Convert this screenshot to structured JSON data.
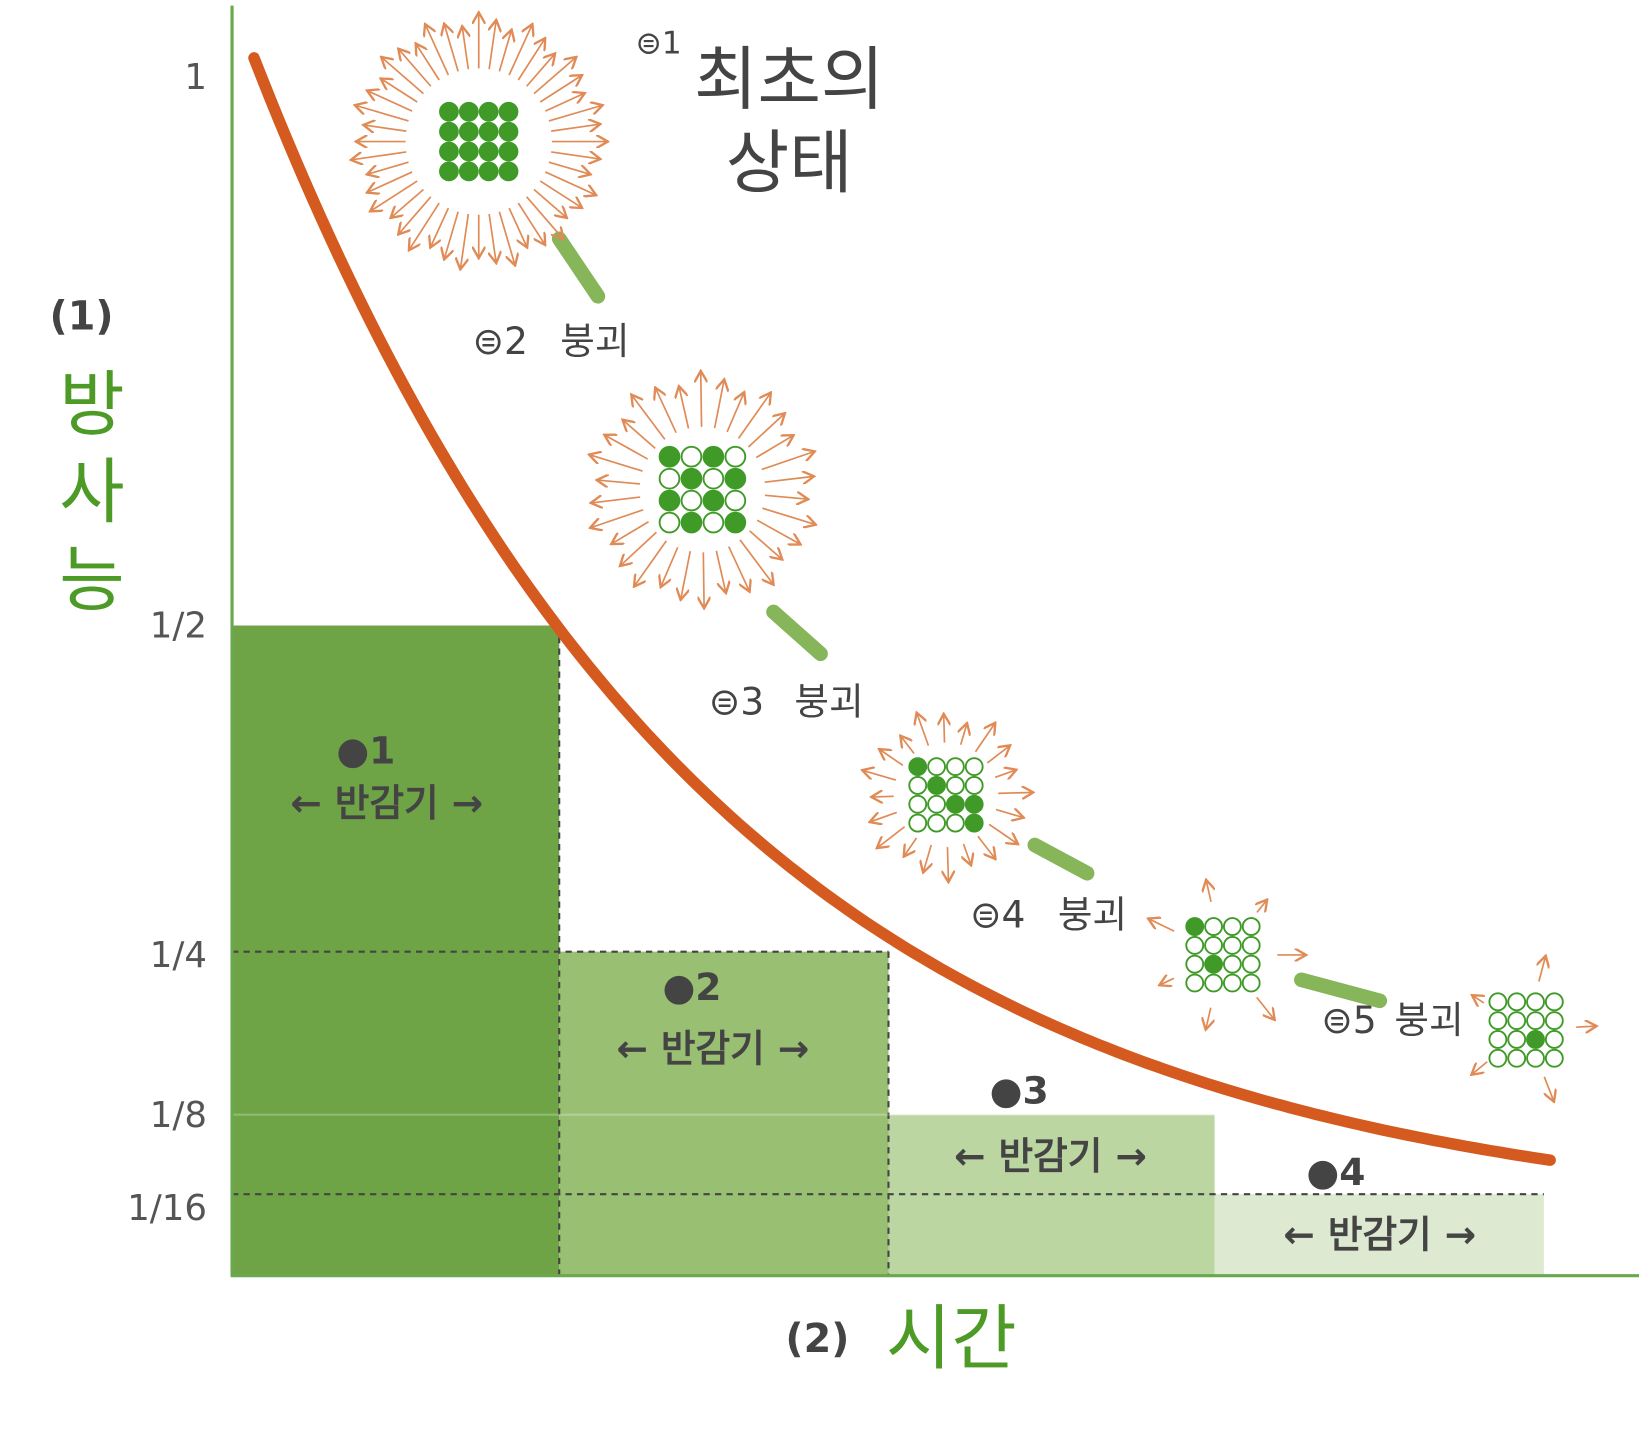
{
  "y_axis": {
    "label_number": "(1)",
    "label": "방사능",
    "ticks": [
      "1",
      "1/2",
      "1/4",
      "1/8",
      "1/16"
    ]
  },
  "x_axis": {
    "label_number": "(2)",
    "label": "시간"
  },
  "half_lives": [
    {
      "marker": "●1",
      "label": "← 반감기 →"
    },
    {
      "marker": "●2",
      "label": "← 반감기 →"
    },
    {
      "marker": "●3",
      "label": "← 반감기 →"
    },
    {
      "marker": "●4",
      "label": "← 반감기 →"
    }
  ],
  "initial_state": {
    "marker": "⊜1",
    "lines": [
      "최초의",
      "상태"
    ]
  },
  "decays": [
    {
      "marker": "⊜2",
      "label": "붕괴"
    },
    {
      "marker": "⊜3",
      "label": "붕괴"
    },
    {
      "marker": "⊜4",
      "label": "붕괴"
    },
    {
      "marker": "⊜5",
      "label": "붕괴"
    }
  ]
}
